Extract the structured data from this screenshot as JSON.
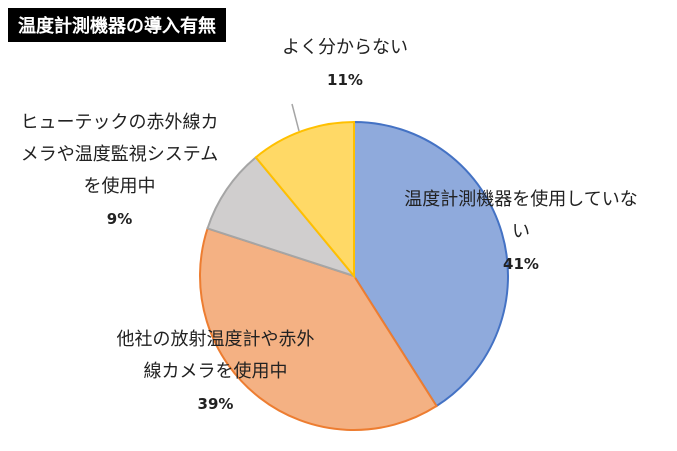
{
  "chart_data": {
    "type": "pie",
    "title": "温度計測機器の導入有無",
    "categories": [
      "温度計測機器を使用していない",
      "他社の放射温度計や赤外線カメラを使用中",
      "ヒューテックの赤外線カメラや温度監視システムを使用中",
      "よく分からない"
    ],
    "values": [
      41,
      39,
      9,
      11
    ],
    "value_labels": [
      "41%",
      "39%",
      "9%",
      "11%"
    ],
    "colors": [
      "#8faadc",
      "#f4b183",
      "#d0cece",
      "#ffd966"
    ],
    "edge_colors": [
      "#4472c4",
      "#ed7d31",
      "#a5a5a5",
      "#ffc000"
    ]
  }
}
